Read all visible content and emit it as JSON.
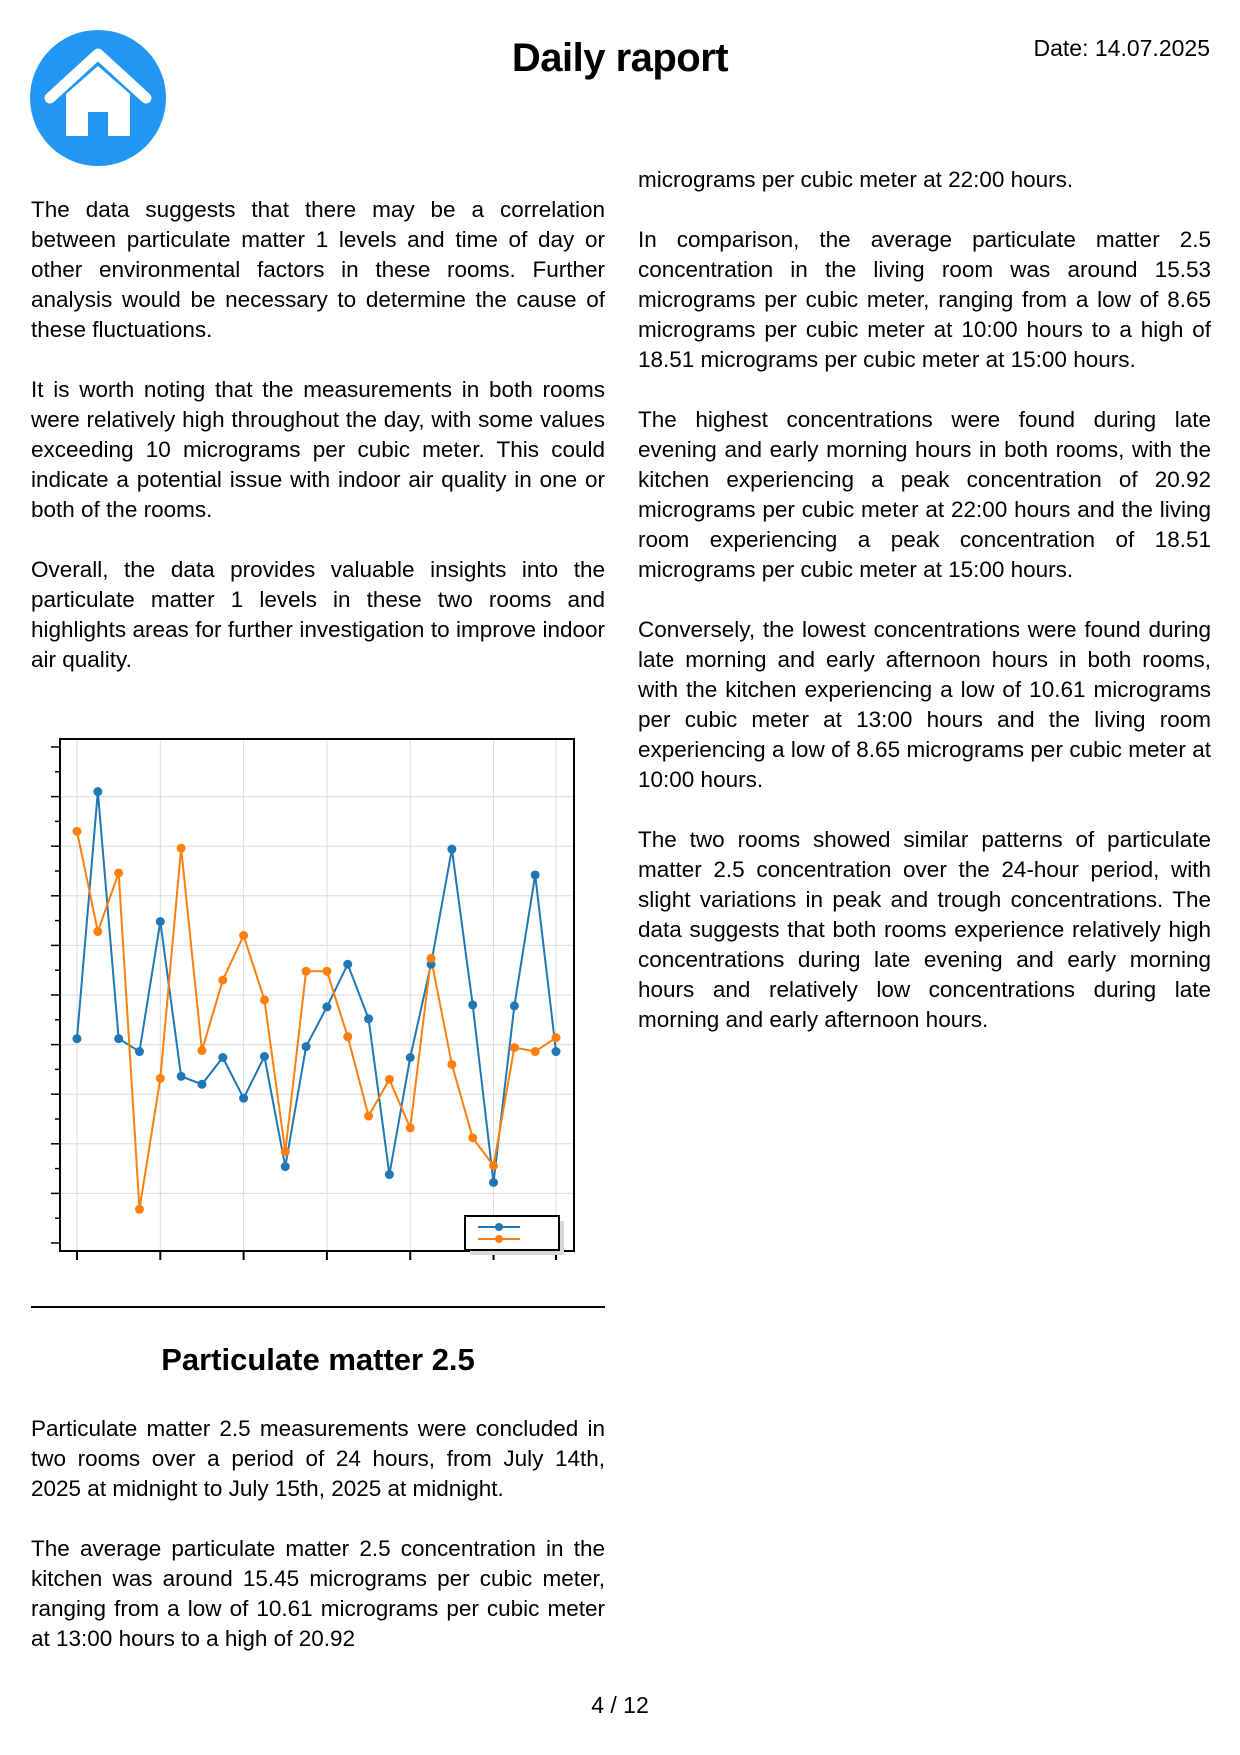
{
  "header": {
    "logo_icon": "home-icon",
    "logo_color": "#2196f3",
    "title": "Daily raport",
    "date": "Date: 14.07.2025"
  },
  "left_column": {
    "paragraphs": [
      "The data suggests that there may be a correlation between particulate matter 1 levels and time of day or other environmental factors in these rooms. Further analysis would be necessary to determine the cause of these fluctuations.",
      "It is worth noting that the measurements in both rooms were relatively high throughout the day, with some values exceeding 10 micrograms per cubic meter. This could indicate a potential issue with indoor air quality in one or both of the rooms.",
      "Overall, the data provides valuable insights into the particulate matter 1 levels in these two rooms and highlights areas for further investigation to improve indoor air quality."
    ]
  },
  "chart_data": {
    "type": "line",
    "title": "",
    "xlabel": "",
    "ylabel": "",
    "x": [
      0,
      1,
      2,
      3,
      4,
      5,
      6,
      7,
      8,
      9,
      10,
      11,
      12,
      13,
      14,
      15,
      16,
      17,
      18,
      19,
      20,
      21,
      22,
      23
    ],
    "ylim": [
      0,
      10
    ],
    "grid": true,
    "legend": "bottom-right",
    "series": [
      {
        "color": "#1f77b4",
        "values": [
          4.12,
          9.1,
          4.12,
          3.86,
          6.48,
          3.36,
          3.2,
          3.74,
          2.92,
          3.76,
          1.54,
          3.96,
          4.76,
          5.62,
          4.52,
          1.38,
          3.74,
          5.62,
          7.94,
          4.8,
          1.22,
          4.78,
          7.42,
          3.86
        ]
      },
      {
        "color": "#ff7f0e",
        "values": [
          8.3,
          6.28,
          7.46,
          0.68,
          3.32,
          7.96,
          3.88,
          5.3,
          6.2,
          4.9,
          1.84,
          5.48,
          5.48,
          4.16,
          2.56,
          3.3,
          2.32,
          5.74,
          3.6,
          2.12,
          1.56,
          3.94,
          3.86,
          4.14
        ]
      }
    ]
  },
  "section_pm25": {
    "title": "Particulate matter 2.5",
    "paragraphs": [
      "Particulate matter 2.5 measurements were concluded in two rooms over a period of 24 hours, from July 14th, 2025 at midnight to July 15th, 2025 at midnight.",
      "The average particulate matter 2.5 concentration in the kitchen was around 15.45 micrograms per cubic meter, ranging from a low of 10.61 micrograms per cubic meter at 13:00 hours to a high of 20.92"
    ]
  },
  "right_column": {
    "paragraphs": [
      "micrograms per cubic meter at 22:00 hours.",
      "In comparison, the average particulate matter 2.5 concentration in the living room was around 15.53 micrograms per cubic meter, ranging from a low of 8.65 micrograms per cubic meter at 10:00 hours to a high of 18.51 micrograms per cubic meter at 15:00 hours.",
      "The highest concentrations were found during late evening and early morning hours in both rooms, with the kitchen experiencing a peak concentration of 20.92 micrograms per cubic meter at 22:00 hours and the living room experiencing a peak concentration of 18.51 micrograms per cubic meter at 15:00 hours.",
      "Conversely, the lowest concentrations were found during late morning and early afternoon hours in both rooms, with the kitchen experiencing a low of 10.61 micrograms per cubic meter at 13:00 hours and the living room experiencing a low of 8.65 micrograms per cubic meter at 10:00 hours.",
      "The two rooms showed similar patterns of particulate matter 2.5 concentration over the 24-hour period, with slight variations in peak and trough concentrations. The data suggests that both rooms experience relatively high concentrations during late evening and early morning hours and relatively low concentrations during late morning and early afternoon hours."
    ]
  },
  "footer": {
    "page_number": "4 / 12"
  }
}
